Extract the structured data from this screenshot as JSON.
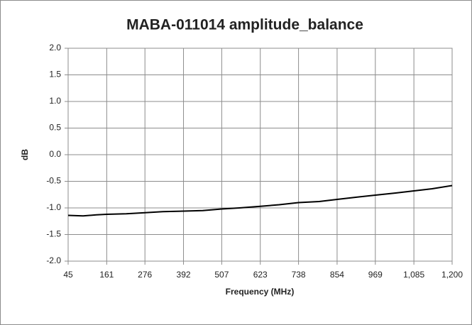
{
  "chart_data": {
    "type": "line",
    "title": "MABA-011014 amplitude_balance",
    "x_label": "Frequency (MHz)",
    "y_label": "dB",
    "series": [
      {
        "name": "amplitude_balance",
        "color": "#000000",
        "x": [
          45,
          90,
          130,
          161,
          220,
          276,
          330,
          392,
          450,
          507,
          560,
          623,
          680,
          738,
          800,
          854,
          910,
          969,
          1030,
          1085,
          1140,
          1200
        ],
        "values": [
          -1.14,
          -1.15,
          -1.13,
          -1.12,
          -1.11,
          -1.09,
          -1.07,
          -1.06,
          -1.05,
          -1.02,
          -1.0,
          -0.97,
          -0.94,
          -0.9,
          -0.88,
          -0.84,
          -0.8,
          -0.76,
          -0.72,
          -0.68,
          -0.64,
          -0.58
        ]
      }
    ],
    "xlim": [
      45,
      1200
    ],
    "xticks": [
      45,
      161,
      276,
      392,
      507,
      623,
      738,
      854,
      969,
      {
        "value": 1085,
        "label": "1,085"
      },
      {
        "value": 1200,
        "label": "1,200"
      }
    ],
    "ylim": [
      -2,
      2
    ],
    "yticks": [
      {
        "value": -2,
        "label": "-2.0"
      },
      -1.5,
      {
        "value": -1,
        "label": "-1.0"
      },
      -0.5,
      {
        "value": 0,
        "label": "0.0"
      },
      0.5,
      {
        "value": 1,
        "label": "1.0"
      },
      1.5,
      {
        "value": 2,
        "label": "2.0"
      }
    ],
    "grid": true
  }
}
